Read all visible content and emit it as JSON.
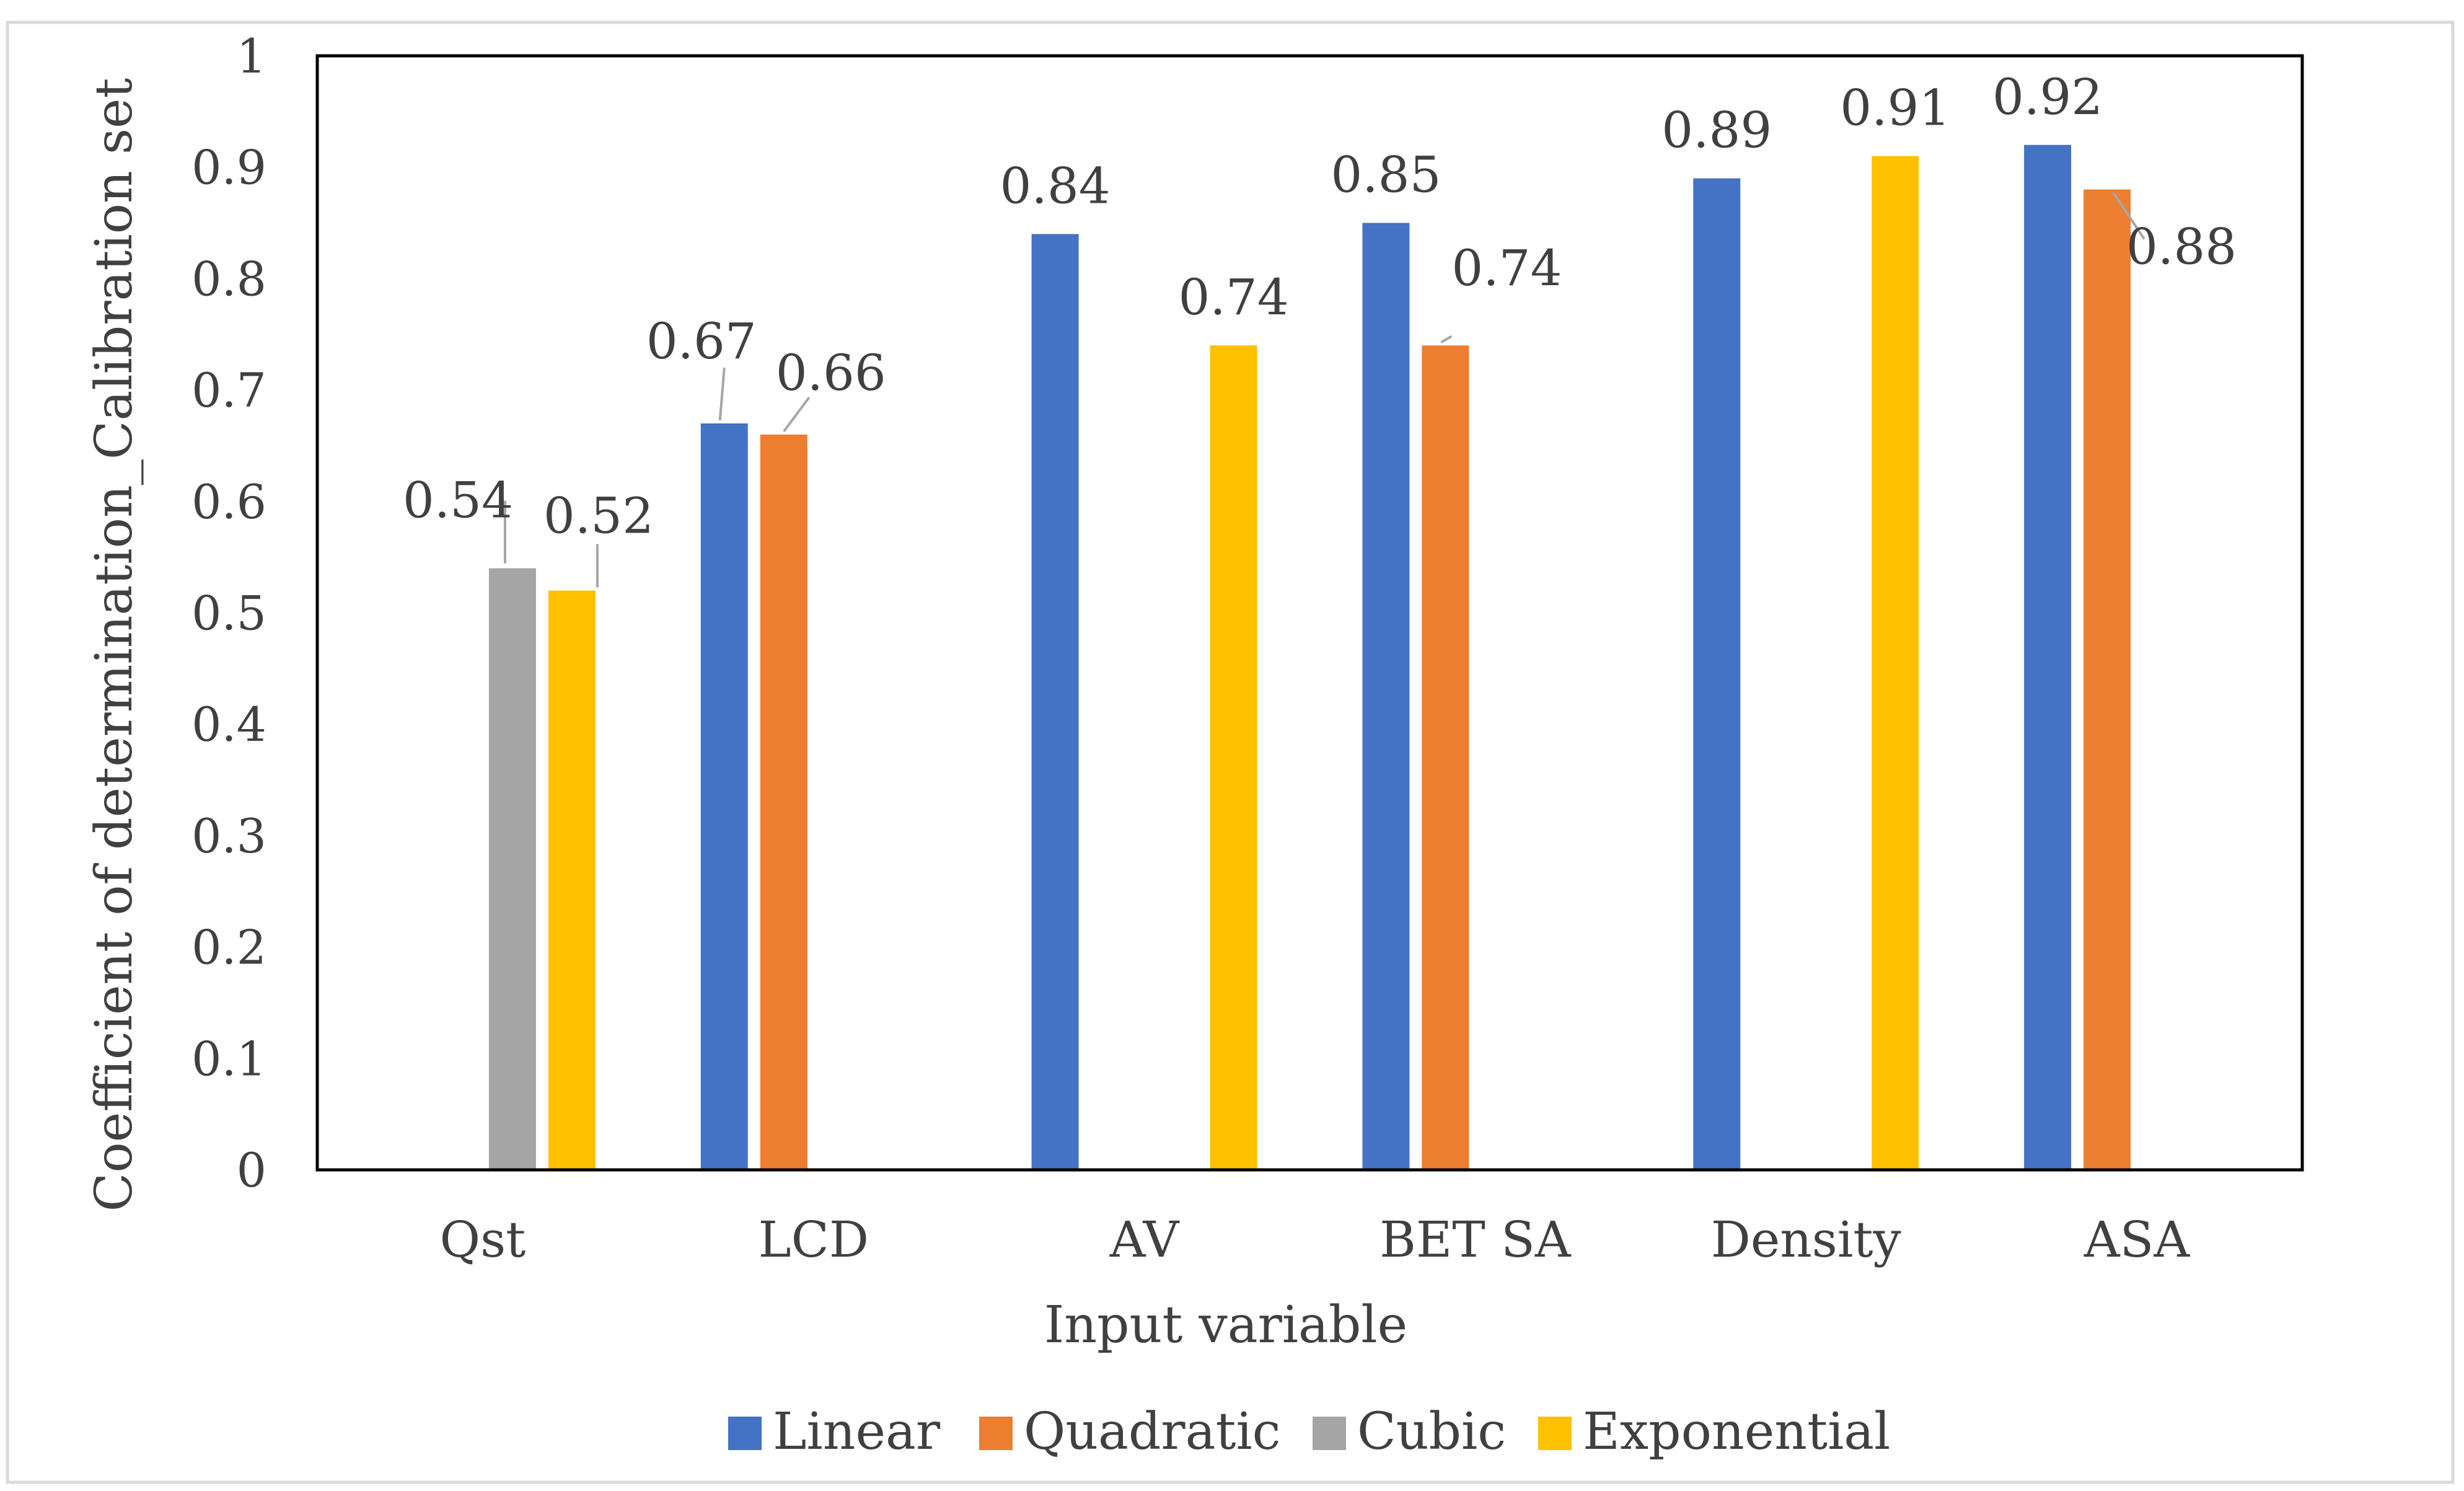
{
  "chart_data": {
    "type": "bar",
    "title": "",
    "xlabel": "Input variable",
    "ylabel": "Coefficient of determination_Calibration set",
    "ylim": [
      0,
      1
    ],
    "yticks": [
      "0",
      "0.1",
      "0.2",
      "0.3",
      "0.4",
      "0.5",
      "0.6",
      "0.7",
      "0.8",
      "0.9",
      "1"
    ],
    "grid": false,
    "legend_position": "bottom",
    "categories": [
      "Qst",
      "LCD",
      "AV",
      "BET SA",
      "Density",
      "ASA"
    ],
    "series": [
      {
        "name": "Linear",
        "color": "#4472C4",
        "values": [
          null,
          0.67,
          0.84,
          0.85,
          0.89,
          0.92
        ],
        "labels": [
          null,
          "0.67",
          "0.84",
          "0.85",
          "0.89",
          "0.92"
        ]
      },
      {
        "name": "Quadratic",
        "color": "#ED7D31",
        "values": [
          null,
          0.66,
          null,
          0.74,
          null,
          0.88
        ],
        "labels": [
          null,
          "0.66",
          null,
          "0.74",
          null,
          "0.88"
        ]
      },
      {
        "name": "Cubic",
        "color": "#A5A5A5",
        "values": [
          0.54,
          null,
          null,
          null,
          null,
          null
        ],
        "labels": [
          "0.54",
          null,
          null,
          null,
          null,
          null
        ]
      },
      {
        "name": "Exponential",
        "color": "#FFC000",
        "values": [
          0.52,
          null,
          0.74,
          null,
          0.91,
          null
        ],
        "labels": [
          "0.52",
          null,
          "0.74",
          null,
          "0.91",
          null
        ]
      }
    ]
  }
}
